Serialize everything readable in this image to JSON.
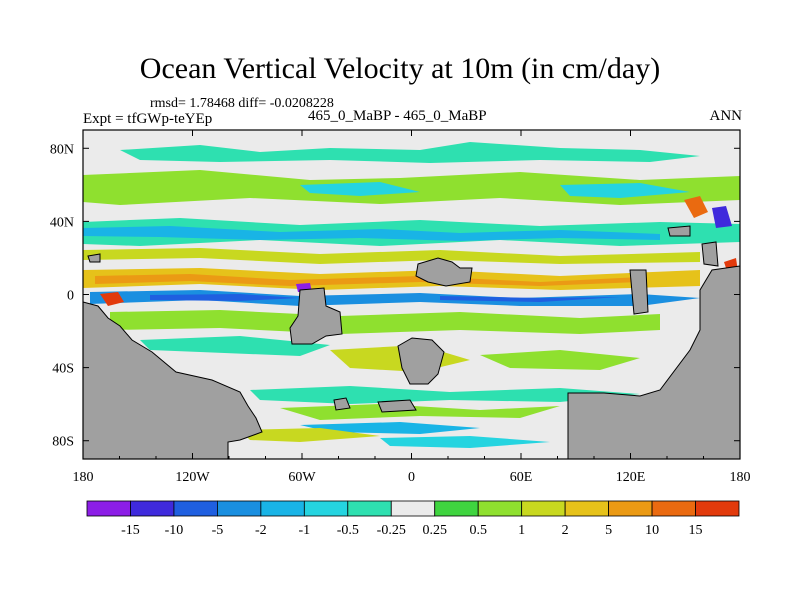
{
  "header": {
    "title": "Ocean Vertical Velocity at 10m (in cm/day)",
    "stats": "rmsd= 1.78468 diff= -0.0208228",
    "experiment": "Expt = tfGWp-teYEp",
    "comparison": "465_0_MaBP - 465_0_MaBP",
    "season": "ANN"
  },
  "chart_data": {
    "type": "heatmap",
    "title": "Ocean Vertical Velocity at 10m (in cm/day)",
    "xlabel": "",
    "ylabel": "",
    "xlim": [
      -180,
      180
    ],
    "ylim": [
      -90,
      90
    ],
    "x_ticks": [
      {
        "value": -180,
        "label": "180"
      },
      {
        "value": -120,
        "label": "120W"
      },
      {
        "value": -60,
        "label": "60W"
      },
      {
        "value": 0,
        "label": "0"
      },
      {
        "value": 60,
        "label": "60E"
      },
      {
        "value": 120,
        "label": "120E"
      },
      {
        "value": 180,
        "label": "180"
      }
    ],
    "y_ticks": [
      {
        "value": 80,
        "label": "80N"
      },
      {
        "value": 40,
        "label": "40N"
      },
      {
        "value": 0,
        "label": "0"
      },
      {
        "value": -40,
        "label": "40S"
      },
      {
        "value": -80,
        "label": "80S"
      }
    ],
    "colorbar": {
      "labels": [
        "-15",
        "-10",
        "-5",
        "-2",
        "-1",
        "-0.5",
        "-0.25",
        "0.25",
        "0.5",
        "1",
        "2",
        "5",
        "10",
        "15"
      ],
      "colors": [
        "#8c1ee6",
        "#3f2adc",
        "#1f5fe0",
        "#1a8fe0",
        "#19b4e6",
        "#25d4e0",
        "#2ee0b0",
        "#ebebeb",
        "#3fd43f",
        "#8fe02f",
        "#c8d820",
        "#e6c21a",
        "#eb9a14",
        "#ea6a10",
        "#e23a0c"
      ]
    },
    "land_color": "#a0a0a0",
    "zero_band_color": "#ebebeb"
  }
}
